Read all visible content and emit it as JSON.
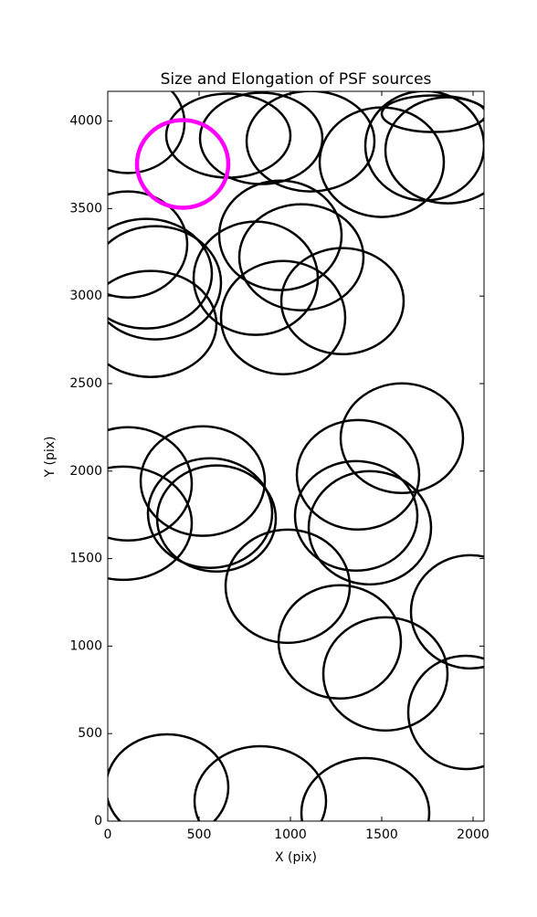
{
  "chart_data": {
    "type": "ellipse",
    "title": "Size and Elongation of PSF sources",
    "x_label": "X (pix)",
    "y_label": "Y (pix)",
    "xlim": [
      0,
      2060
    ],
    "ylim": [
      0,
      4170
    ],
    "xticks": [
      0,
      500,
      1000,
      1500,
      2000
    ],
    "yticks": [
      0,
      500,
      1000,
      1500,
      2000,
      2500,
      3000,
      3500,
      4000
    ],
    "series": [
      {
        "color": "#000000",
        "x": [
          110,
          660,
          840,
          1110,
          1500,
          1785,
          1735,
          1860,
          945,
          1060,
          1285,
          960,
          810,
          110,
          210,
          260,
          235,
          110,
          85,
          520,
          560,
          595,
          1610,
          1370,
          1360,
          1435,
          985,
          1270,
          1520,
          1985,
          1960,
          325,
          835,
          1410
        ],
        "y": [
          3990,
          3917,
          3901,
          3885,
          3765,
          4042,
          3859,
          3833,
          3347,
          3222,
          2971,
          2877,
          3102,
          3295,
          3128,
          3076,
          2841,
          1927,
          1702,
          1943,
          1760,
          1729,
          2188,
          1979,
          1744,
          1676,
          1342,
          1024,
          841,
          1196,
          621,
          193,
          115,
          47
        ],
        "width": [
          620,
          680,
          670,
          700,
          680,
          570,
          650,
          680,
          670,
          680,
          670,
          680,
          680,
          650,
          720,
          720,
          720,
          700,
          750,
          680,
          680,
          650,
          670,
          670,
          670,
          670,
          680,
          670,
          680,
          650,
          630,
          670,
          720,
          700
        ],
        "height": [
          574,
          480,
          522,
          574,
          626,
          209,
          626,
          606,
          626,
          606,
          606,
          647,
          647,
          606,
          626,
          647,
          606,
          647,
          647,
          626,
          626,
          606,
          626,
          626,
          626,
          647,
          647,
          647,
          647,
          647,
          647,
          606,
          626,
          626
        ],
        "line_width": 2.5
      },
      {
        "color": "#ff00ff",
        "x": [
          410
        ],
        "y": [
          3755
        ],
        "width": [
          500
        ],
        "height": [
          501
        ],
        "line_width": 4.5
      }
    ]
  }
}
